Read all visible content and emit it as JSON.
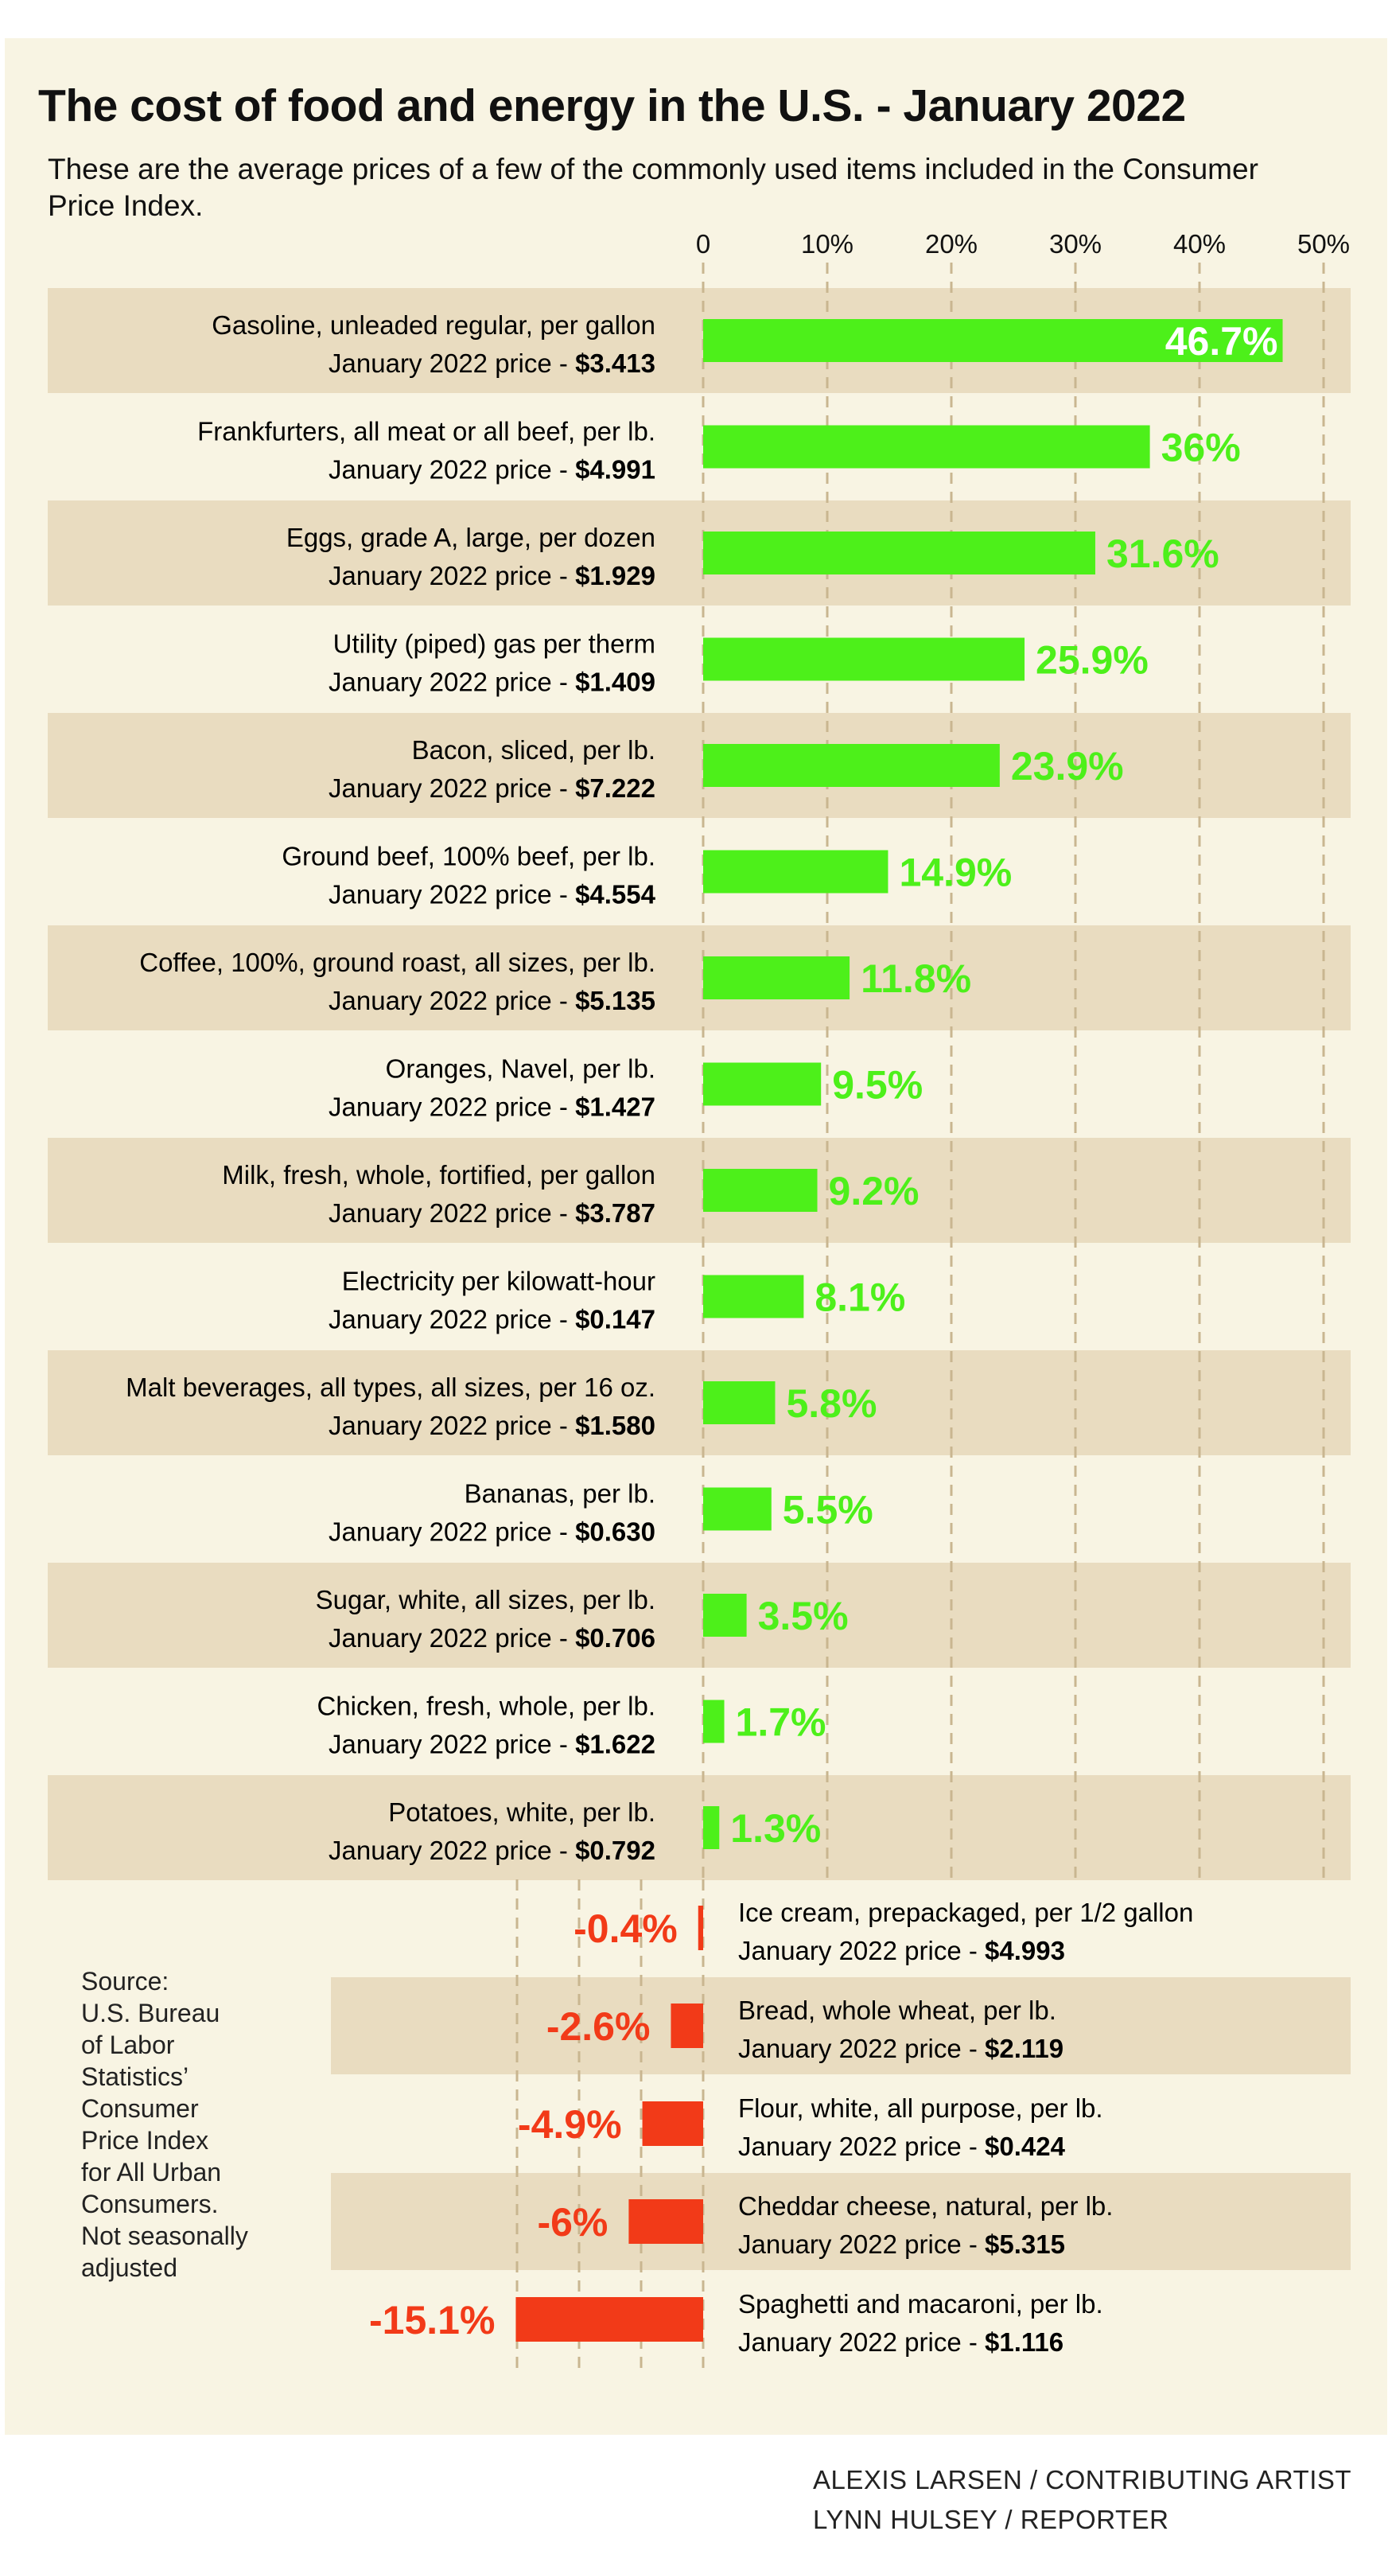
{
  "title": "The cost of food and energy in the U.S. - January 2022",
  "subtitle": "These are the average prices of a few of the commonly used items included in the Consumer Price Index.",
  "source": "Source:\nU.S. Bureau\nof Labor\nStatistics’\nConsumer\nPrice Index\nfor All Urban\nConsumers.\nNot seasonally\nadjusted",
  "credits": [
    "ALEXIS LARSEN / CONTRIBUTING ARTIST",
    "LYNN HULSEY / REPORTER"
  ],
  "colors": {
    "positive": "#4df01a",
    "negative": "#f23a18",
    "band": "#e9dcc0",
    "background": "#f8f4e3",
    "gridline": "#c9b690"
  },
  "chart_data": {
    "type": "bar",
    "orientation": "horizontal",
    "xlim": [
      -15.1,
      50
    ],
    "xticks": [
      "0",
      "10%",
      "20%",
      "30%",
      "40%",
      "50%"
    ],
    "grid": "vertical dashed",
    "price_prefix": "January 2022 price - ",
    "items": [
      {
        "name": "Gasoline, unleaded regular, per gallon",
        "price": "$3.413",
        "value": 46.7,
        "label": "46.7%"
      },
      {
        "name": "Frankfurters, all meat or all beef, per lb.",
        "price": "$4.991",
        "value": 36,
        "label": "36%"
      },
      {
        "name": "Eggs, grade A, large, per dozen",
        "price": "$1.929",
        "value": 31.6,
        "label": "31.6%"
      },
      {
        "name": "Utility (piped) gas per therm",
        "price": "$1.409",
        "value": 25.9,
        "label": "25.9%"
      },
      {
        "name": "Bacon, sliced, per lb.",
        "price": "$7.222",
        "value": 23.9,
        "label": "23.9%"
      },
      {
        "name": "Ground beef, 100% beef, per lb.",
        "price": "$4.554",
        "value": 14.9,
        "label": "14.9%"
      },
      {
        "name": "Coffee, 100%, ground roast, all sizes, per lb.",
        "price": "$5.135",
        "value": 11.8,
        "label": "11.8%"
      },
      {
        "name": "Oranges, Navel, per lb.",
        "price": "$1.427",
        "value": 9.5,
        "label": "9.5%"
      },
      {
        "name": "Milk, fresh, whole, fortified, per gallon",
        "price": "$3.787",
        "value": 9.2,
        "label": "9.2%"
      },
      {
        "name": "Electricity per kilowatt-hour",
        "price": "$0.147",
        "value": 8.1,
        "label": "8.1%"
      },
      {
        "name": "Malt beverages, all types, all sizes, per 16 oz.",
        "price": "$1.580",
        "value": 5.8,
        "label": "5.8%"
      },
      {
        "name": "Bananas, per lb.",
        "price": "$0.630",
        "value": 5.5,
        "label": "5.5%"
      },
      {
        "name": "Sugar, white, all sizes, per lb.",
        "price": "$0.706",
        "value": 3.5,
        "label": "3.5%"
      },
      {
        "name": "Chicken, fresh, whole, per lb.",
        "price": "$1.622",
        "value": 1.7,
        "label": "1.7%"
      },
      {
        "name": "Potatoes, white, per lb.",
        "price": "$0.792",
        "value": 1.3,
        "label": "1.3%"
      },
      {
        "name": "Ice cream, prepackaged, per 1/2 gallon",
        "price": "$4.993",
        "value": -0.4,
        "label": "-0.4%"
      },
      {
        "name": "Bread, whole wheat, per lb.",
        "price": "$2.119",
        "value": -2.6,
        "label": "-2.6%"
      },
      {
        "name": "Flour, white, all purpose, per lb.",
        "price": "$0.424",
        "value": -4.9,
        "label": "-4.9%"
      },
      {
        "name": "Cheddar cheese, natural, per lb.",
        "price": "$5.315",
        "value": -6,
        "label": "-6%"
      },
      {
        "name": "Spaghetti and macaroni, per lb.",
        "price": "$1.116",
        "value": -15.1,
        "label": "-15.1%"
      }
    ]
  }
}
